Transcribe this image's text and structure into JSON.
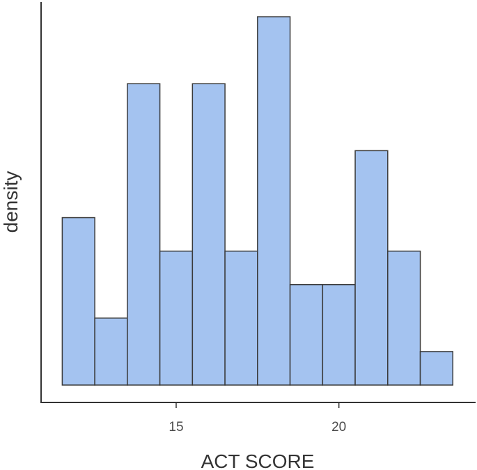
{
  "chart_data": {
    "type": "bar",
    "subtype": "histogram",
    "title": "",
    "xlabel": "ACT SCORE",
    "ylabel": "density",
    "bin_width": 1,
    "bins": [
      {
        "start": 11.5,
        "end": 12.5,
        "value": 5
      },
      {
        "start": 12.5,
        "end": 13.5,
        "value": 2
      },
      {
        "start": 13.5,
        "end": 14.5,
        "value": 9
      },
      {
        "start": 14.5,
        "end": 15.5,
        "value": 4
      },
      {
        "start": 15.5,
        "end": 16.5,
        "value": 9
      },
      {
        "start": 16.5,
        "end": 17.5,
        "value": 4
      },
      {
        "start": 17.5,
        "end": 18.5,
        "value": 11
      },
      {
        "start": 18.5,
        "end": 19.5,
        "value": 3
      },
      {
        "start": 19.5,
        "end": 20.5,
        "value": 3
      },
      {
        "start": 20.5,
        "end": 21.5,
        "value": 7
      },
      {
        "start": 21.5,
        "end": 22.5,
        "value": 4
      },
      {
        "start": 22.5,
        "end": 23.5,
        "value": 1
      }
    ],
    "xlim": [
      10.85,
      24.2
    ],
    "ylim": [
      0,
      11.5
    ],
    "x_ticks": [
      15,
      20
    ],
    "x_tick_labels": [
      "15",
      "20"
    ],
    "y_ticks_shown": false,
    "grid": false,
    "legend": "none",
    "colors": {
      "bar_fill": "#a4c3f0",
      "bar_stroke": "#3a3a3a",
      "axis": "#333333"
    }
  }
}
